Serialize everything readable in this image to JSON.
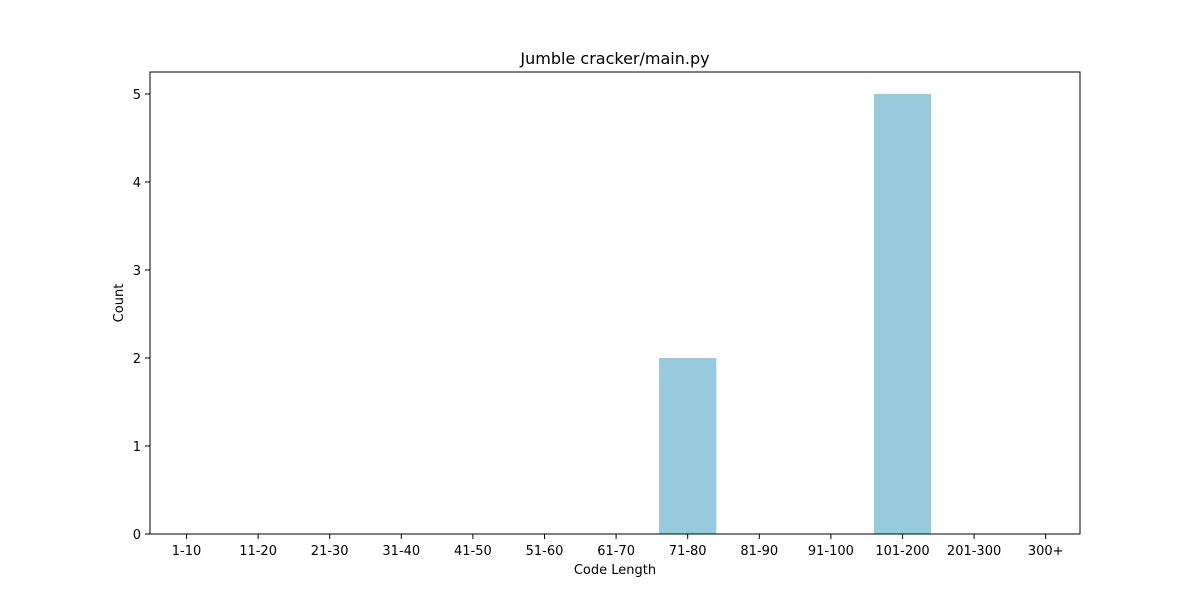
{
  "chart_data": {
    "type": "bar",
    "title": "Jumble cracker/main.py",
    "xlabel": "Code Length",
    "ylabel": "Count",
    "categories": [
      "1-10",
      "11-20",
      "21-30",
      "31-40",
      "41-50",
      "51-60",
      "61-70",
      "71-80",
      "81-90",
      "91-100",
      "101-200",
      "201-300",
      "300+"
    ],
    "values": [
      0,
      0,
      0,
      0,
      0,
      0,
      0,
      2,
      0,
      0,
      5,
      0,
      0
    ],
    "ylim": [
      0,
      5.25
    ],
    "yticks": [
      "0",
      "1",
      "2",
      "3",
      "4",
      "5"
    ],
    "bar_color": "#96cadc",
    "grid": false,
    "legend": "none"
  }
}
